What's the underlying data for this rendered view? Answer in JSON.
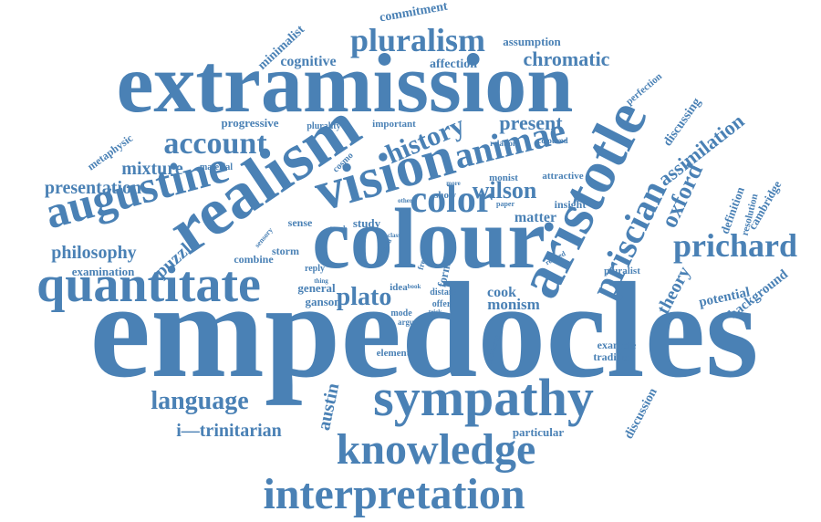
{
  "colors": {
    "word": "#4a81b5",
    "background": "#ffffff"
  },
  "words": [
    "empedocles",
    "colour",
    "extramission",
    "realism",
    "vision",
    "aristotle",
    "augustine",
    "quantitate",
    "sympathy",
    "knowledge",
    "interpretation",
    "pluralism",
    "account",
    "animae",
    "history",
    "color",
    "priscian",
    "prichard",
    "chromatic",
    "oxford",
    "wilson",
    "present",
    "assimilation",
    "theory",
    "language",
    "plato",
    "mixture",
    "presentation",
    "philosophy",
    "puzzle",
    "austin",
    "i—trinitarian",
    "cognitive",
    "affection",
    "minimalist",
    "commitment",
    "assumption",
    "perfection",
    "discussing",
    "progressive",
    "metaphysic",
    "examination",
    "matter",
    "cook",
    "monism",
    "potential",
    "background",
    "definition",
    "resolution",
    "cambridge",
    "discussion",
    "particular",
    "example",
    "tradition",
    "element",
    "pluralist",
    "timaeus",
    "study",
    "sense",
    "insight",
    "form",
    "general",
    "ganson",
    "important",
    "plurality",
    "material",
    "cosmo",
    "relation",
    "coloured",
    "monist",
    "attractive",
    "show",
    "paper",
    "more",
    "storm",
    "reply",
    "combine",
    "idea",
    "distant",
    "offer",
    "mode",
    "argue",
    "touch",
    "sensory",
    "aporia",
    "frege",
    "thing",
    "related",
    "book",
    "trick",
    "other",
    "class"
  ]
}
